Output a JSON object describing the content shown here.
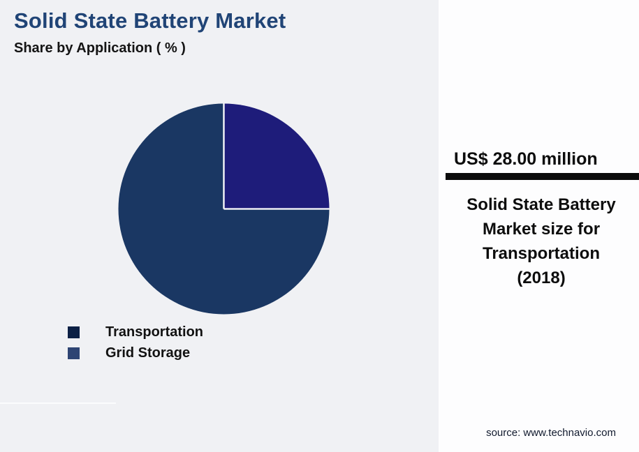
{
  "header": {
    "title": "Solid State Battery Market",
    "subtitle": "Share by Application ( % )"
  },
  "chart_data": {
    "type": "pie",
    "title": "Solid State Battery Market Share by Application (%)",
    "categories": [
      "Transportation",
      "Grid Storage"
    ],
    "values": [
      25,
      75
    ],
    "unit": "%",
    "colors": [
      "#1e1c7a",
      "#1a3763"
    ],
    "start_angle_deg": 0,
    "direction": "clockwise",
    "separator_color": "#ffffff",
    "legend_position": "bottom-left"
  },
  "legend": {
    "items": [
      {
        "label": "Transportation",
        "color": "#0c2045"
      },
      {
        "label": "Grid Storage",
        "color": "#2e4473"
      }
    ]
  },
  "callout": {
    "value": "US$ 28.00 million",
    "description": "Solid State Battery Market size for Transportation (2018)",
    "description_lines": [
      "Solid State Battery",
      "Market size for",
      "Transportation",
      "(2018)"
    ],
    "divider_color": "#0b0b0b"
  },
  "footer": {
    "source": "source: www.technavio.com"
  },
  "colors": {
    "background": "#f0f1f4",
    "panel": "#fdfdfe",
    "title": "#204476"
  }
}
